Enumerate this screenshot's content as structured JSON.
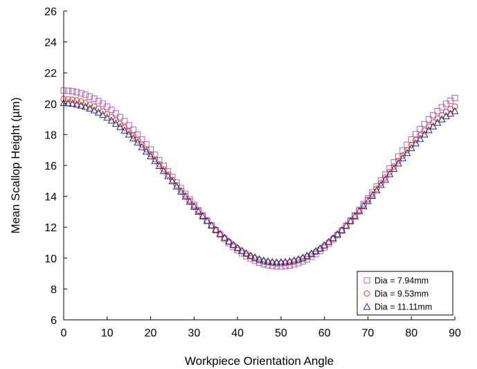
{
  "chart_data": {
    "type": "scatter",
    "title": "",
    "xlabel": "Workpiece Orientation Angle",
    "ylabel": "Mean Scallop Height (µm)",
    "xlim": [
      0,
      90
    ],
    "ylim": [
      6,
      26
    ],
    "xticks": [
      0,
      10,
      20,
      30,
      40,
      50,
      60,
      70,
      80,
      90
    ],
    "yticks": [
      6,
      8,
      10,
      12,
      14,
      16,
      18,
      20,
      22,
      24,
      26
    ],
    "x_tick_labels": [
      "0",
      "10",
      "20",
      "30",
      "40",
      "50",
      "60",
      "70",
      "80",
      "90"
    ],
    "y_tick_labels": [
      "6",
      "8",
      "10",
      "12",
      "14",
      "16",
      "18",
      "20",
      "22",
      "24",
      "26"
    ],
    "grid": false,
    "legend_position": "bottom-right",
    "x": [
      0,
      1,
      2,
      3,
      4,
      5,
      6,
      7,
      8,
      9,
      10,
      11,
      12,
      13,
      14,
      15,
      16,
      17,
      18,
      19,
      20,
      21,
      22,
      23,
      24,
      25,
      26,
      27,
      28,
      29,
      30,
      31,
      32,
      33,
      34,
      35,
      36,
      37,
      38,
      39,
      40,
      41,
      42,
      43,
      44,
      45,
      46,
      47,
      48,
      49,
      50,
      51,
      52,
      53,
      54,
      55,
      56,
      57,
      58,
      59,
      60,
      61,
      62,
      63,
      64,
      65,
      66,
      67,
      68,
      69,
      70,
      71,
      72,
      73,
      74,
      75,
      76,
      77,
      78,
      79,
      80,
      81,
      82,
      83,
      84,
      85,
      86,
      87,
      88,
      89,
      90
    ],
    "series": [
      {
        "name": "Dia = 7.94mm",
        "marker": "square",
        "color": "#b060b8",
        "values": [
          20.85,
          20.84,
          20.81,
          20.75,
          20.67,
          20.58,
          20.46,
          20.33,
          20.17,
          20.0,
          19.81,
          19.6,
          19.37,
          19.13,
          18.87,
          18.6,
          18.31,
          18.01,
          17.69,
          17.37,
          17.03,
          16.69,
          16.34,
          15.98,
          15.62,
          15.26,
          14.89,
          14.52,
          14.16,
          13.8,
          13.45,
          13.1,
          12.76,
          12.43,
          12.11,
          11.81,
          11.51,
          11.24,
          10.98,
          10.74,
          10.51,
          10.31,
          10.12,
          9.96,
          9.82,
          9.7,
          9.61,
          9.54,
          9.49,
          9.46,
          9.46,
          9.48,
          9.52,
          9.59,
          9.68,
          9.79,
          9.92,
          10.08,
          10.26,
          10.47,
          10.69,
          10.93,
          11.2,
          11.48,
          11.78,
          12.09,
          12.43,
          12.77,
          13.13,
          13.5,
          13.87,
          14.26,
          14.64,
          15.03,
          15.42,
          15.81,
          16.2,
          16.58,
          16.96,
          17.33,
          17.68,
          18.03,
          18.36,
          18.68,
          18.98,
          19.26,
          19.52,
          19.77,
          19.99,
          20.19,
          20.37
        ]
      },
      {
        "name": "Dia = 9.53mm",
        "marker": "circle",
        "color": "#e83a1e",
        "values": [
          20.3,
          20.29,
          20.26,
          20.21,
          20.14,
          20.05,
          19.94,
          19.82,
          19.67,
          19.51,
          19.33,
          19.14,
          18.92,
          18.7,
          18.45,
          18.2,
          17.93,
          17.64,
          17.35,
          17.04,
          16.73,
          16.41,
          16.08,
          15.74,
          15.4,
          15.06,
          14.72,
          14.38,
          14.04,
          13.7,
          13.37,
          13.05,
          12.73,
          12.42,
          12.13,
          11.84,
          11.57,
          11.31,
          11.07,
          10.84,
          10.63,
          10.44,
          10.27,
          10.12,
          9.99,
          9.88,
          9.79,
          9.73,
          9.68,
          9.66,
          9.66,
          9.68,
          9.72,
          9.78,
          9.87,
          9.97,
          10.1,
          10.25,
          10.41,
          10.6,
          10.81,
          11.03,
          11.28,
          11.54,
          11.82,
          12.11,
          12.42,
          12.74,
          13.08,
          13.42,
          13.77,
          14.13,
          14.49,
          14.85,
          15.22,
          15.58,
          15.94,
          16.3,
          16.65,
          16.99,
          17.32,
          17.64,
          17.95,
          18.25,
          18.53,
          18.79,
          19.04,
          19.26,
          19.47,
          19.65,
          19.82
        ]
      },
      {
        "name": "Dia = 11.11mm",
        "marker": "triangle",
        "color": "#262680",
        "values": [
          20.05,
          20.04,
          20.01,
          19.96,
          19.89,
          19.81,
          19.7,
          19.58,
          19.44,
          19.29,
          19.11,
          18.92,
          18.72,
          18.5,
          18.27,
          18.02,
          17.76,
          17.49,
          17.2,
          16.91,
          16.61,
          16.3,
          15.98,
          15.65,
          15.32,
          14.99,
          14.65,
          14.32,
          13.99,
          13.66,
          13.34,
          13.02,
          12.71,
          12.41,
          12.12,
          11.84,
          11.58,
          11.33,
          11.09,
          10.87,
          10.67,
          10.48,
          10.32,
          10.17,
          10.05,
          9.94,
          9.86,
          9.8,
          9.76,
          9.74,
          9.74,
          9.76,
          9.8,
          9.86,
          9.94,
          10.04,
          10.16,
          10.3,
          10.46,
          10.64,
          10.84,
          11.06,
          11.3,
          11.55,
          11.82,
          12.1,
          12.4,
          12.71,
          13.04,
          13.37,
          13.7,
          14.05,
          14.4,
          14.75,
          15.1,
          15.45,
          15.8,
          16.14,
          16.48,
          16.81,
          17.13,
          17.44,
          17.74,
          18.02,
          18.29,
          18.54,
          18.78,
          19.0,
          19.2,
          19.37,
          19.53
        ]
      }
    ]
  }
}
